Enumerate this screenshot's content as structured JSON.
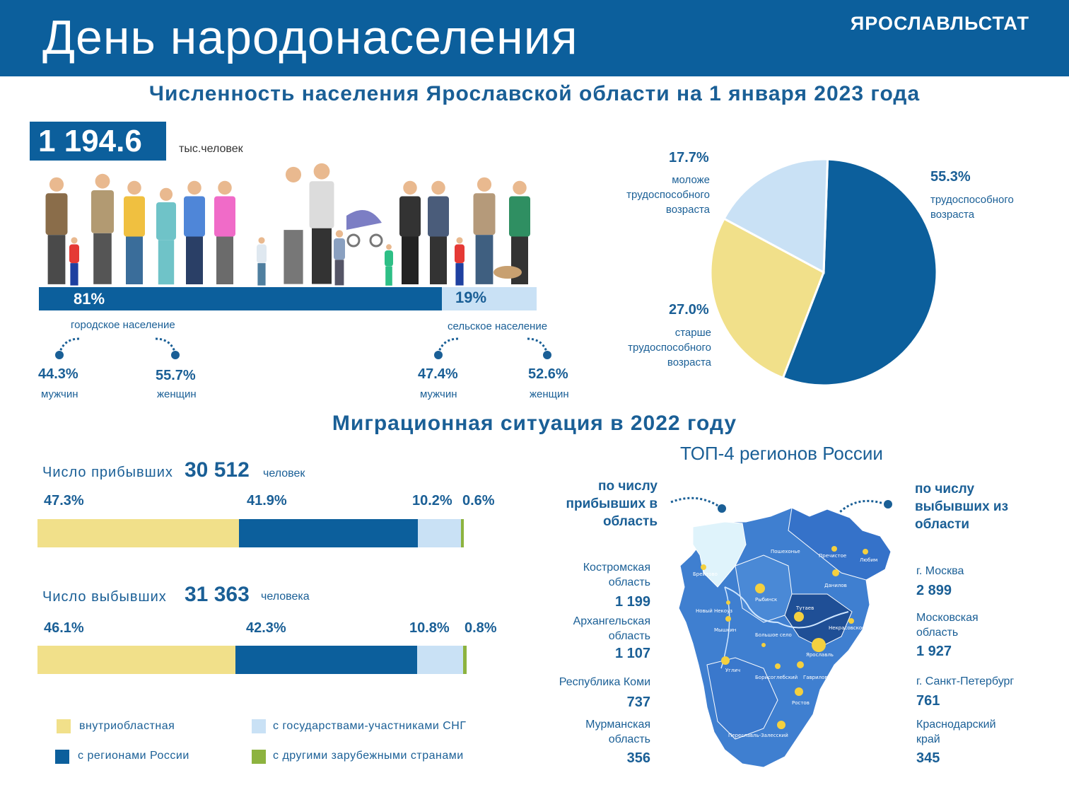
{
  "header": {
    "title": "День народонаселения",
    "brand": "ЯРОСЛАВЛЬСТАТ"
  },
  "subtitle": "Численность населения Ярославской области на 1 января 2023 года",
  "population": {
    "total": "1 194.6",
    "unit": "тыс.человек",
    "urban": {
      "pct": "81%",
      "label": "городское население",
      "men_pct": "44.3%",
      "men_label": "мужчин",
      "women_pct": "55.7%",
      "women_label": "женщин"
    },
    "rural": {
      "pct": "19%",
      "label": "сельское население",
      "men_pct": "47.4%",
      "men_label": "мужчин",
      "women_pct": "52.6%",
      "women_label": "женщин"
    },
    "urban_share": 81
  },
  "age_pie": {
    "slices": [
      {
        "pct": "55.3%",
        "label": "трудоспособного возраста",
        "value": 55.3,
        "color": "#0c5f9c"
      },
      {
        "pct": "27.0%",
        "label": "старше трудоспособного возраста",
        "value": 27.0,
        "color": "#f1e08a"
      },
      {
        "pct": "17.7%",
        "label": "моложе трудоспособного возраста",
        "value": 17.7,
        "color": "#c9e1f5"
      }
    ]
  },
  "migration": {
    "title": "Миграционная ситуация в 2022 году",
    "arrivals": {
      "label": "Число прибывших",
      "value": "30 512",
      "unit": "человек",
      "pcts": [
        "47.3%",
        "41.9%",
        "10.2%",
        "0.6%"
      ],
      "shares": [
        47.3,
        41.9,
        10.2,
        0.6
      ]
    },
    "departures": {
      "label": "Число выбывших",
      "value": "31 363",
      "unit": "человека",
      "pcts": [
        "46.1%",
        "42.3%",
        "10.8%",
        "0.8%"
      ],
      "shares": [
        46.1,
        42.3,
        10.8,
        0.8
      ]
    },
    "colors": [
      "#f1e08a",
      "#0c5f9c",
      "#c9e1f5",
      "#8db33f"
    ],
    "legend": [
      "внутриобластная",
      "с регионами России",
      "с государствами-участниками СНГ",
      "с другими зарубежными странами"
    ]
  },
  "top4": {
    "title": "ТОП-4 регионов России",
    "arrivals_head": "по числу прибывших в область",
    "departures_head": "по числу выбывших из области",
    "arrivals": [
      {
        "name": "Костромская область",
        "value": "1 199"
      },
      {
        "name": "Архангельская область",
        "value": "1 107"
      },
      {
        "name": "Республика Коми",
        "value": "737"
      },
      {
        "name": "Мурманская область",
        "value": "356"
      }
    ],
    "departures": [
      {
        "name": "г. Москва",
        "value": "2 899"
      },
      {
        "name": "Московская область",
        "value": "1 927"
      },
      {
        "name": "г. Санкт-Петербург",
        "value": "761"
      },
      {
        "name": "Краснодарский край",
        "value": "345"
      }
    ],
    "map_labels": [
      "Пошехонье",
      "Пречистое",
      "Любим",
      "Брейтово",
      "Рыбинск",
      "Данилов",
      "Новый Некоуз",
      "Тутаев",
      "Некрасовское",
      "Мышкин",
      "Большое село",
      "Ярославль",
      "Углич",
      "Борисоглебский",
      "Гаврилов-Ям",
      "Ростов",
      "Переславль-Залесский"
    ]
  }
}
